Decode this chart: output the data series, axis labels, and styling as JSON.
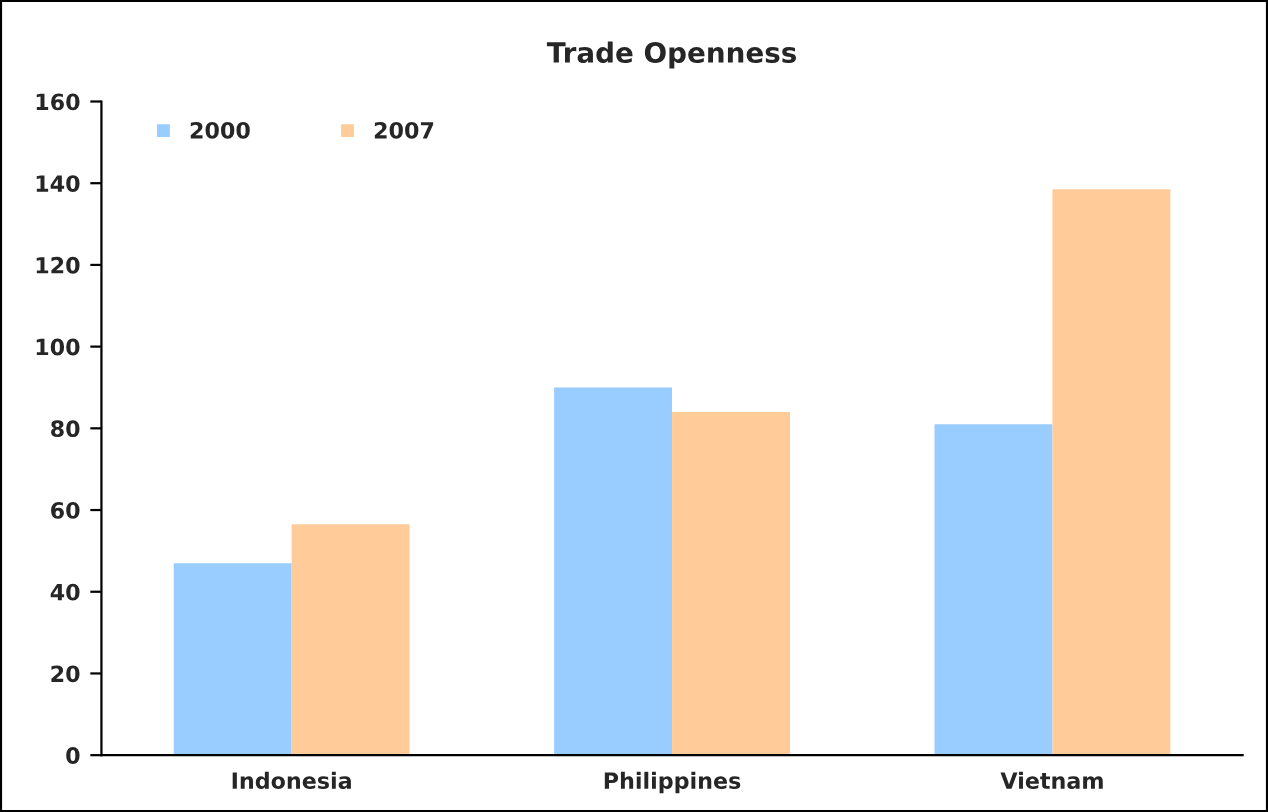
{
  "chart_data": {
    "type": "bar",
    "title": "Trade Openness",
    "categories": [
      "Indonesia",
      "Philippines",
      "Vietnam"
    ],
    "series": [
      {
        "name": "2000",
        "color": "#99ccff",
        "values": [
          47,
          90,
          81
        ]
      },
      {
        "name": "2007",
        "color": "#ffcc99",
        "values": [
          56.5,
          84,
          138.5
        ]
      }
    ],
    "ylim": [
      0,
      160
    ],
    "yticks": [
      0,
      20,
      40,
      60,
      80,
      100,
      120,
      140,
      160
    ],
    "grid": false,
    "legend": "top left"
  }
}
